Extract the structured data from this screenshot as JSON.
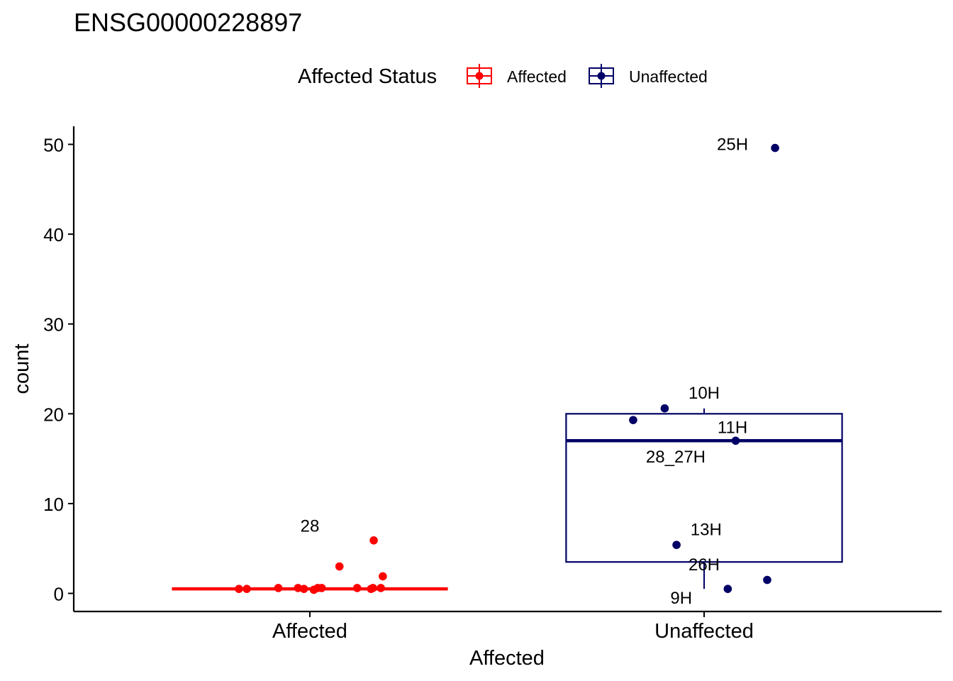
{
  "chart_data": {
    "type": "box",
    "title": "ENSG00000228897",
    "xlabel": "Affected",
    "ylabel": "count",
    "categories": [
      "Affected",
      "Unaffected"
    ],
    "ylim": [
      -2,
      52
    ],
    "yticks": [
      0,
      10,
      20,
      30,
      40,
      50
    ],
    "grid": false,
    "legend": {
      "title": "Affected Status",
      "position": "top",
      "entries": [
        {
          "label": "Affected",
          "color": "#FF0000"
        },
        {
          "label": "Unaffected",
          "color": "#000066"
        }
      ]
    },
    "series": [
      {
        "name": "Affected",
        "color": "#FF0000",
        "box": {
          "q1": 0.5,
          "median": 0.5,
          "q3": 0.5,
          "whisker_low": 0.5,
          "whisker_high": 0.5
        },
        "points": [
          {
            "dx": -0.18,
            "y": 0.5
          },
          {
            "dx": -0.16,
            "y": 0.5
          },
          {
            "dx": -0.08,
            "y": 0.6
          },
          {
            "dx": -0.03,
            "y": 0.6
          },
          {
            "dx": -0.015,
            "y": 0.5
          },
          {
            "dx": 0.01,
            "y": 0.4
          },
          {
            "dx": 0.02,
            "y": 0.6
          },
          {
            "dx": 0.03,
            "y": 0.6
          },
          {
            "dx": 0.12,
            "y": 0.6
          },
          {
            "dx": 0.155,
            "y": 0.5
          },
          {
            "dx": 0.16,
            "y": 0.6
          },
          {
            "dx": 0.18,
            "y": 0.6
          },
          {
            "dx": 0.075,
            "y": 3.0
          },
          {
            "dx": 0.185,
            "y": 1.9
          },
          {
            "dx": 0.162,
            "y": 5.9
          }
        ],
        "labels": [
          {
            "text": "28",
            "dx": 0.0,
            "y": 7.5
          }
        ]
      },
      {
        "name": "Unaffected",
        "color": "#000066",
        "box": {
          "q1": 3.5,
          "median": 17.0,
          "q3": 20.0,
          "whisker_low": 0.5,
          "whisker_high": 20.6
        },
        "points": [
          {
            "dx": 0.18,
            "y": 49.6
          },
          {
            "dx": -0.1,
            "y": 20.6
          },
          {
            "dx": -0.18,
            "y": 19.3
          },
          {
            "dx": 0.08,
            "y": 17.0
          },
          {
            "dx": -0.07,
            "y": 5.4
          },
          {
            "dx": 0.16,
            "y": 1.5
          },
          {
            "dx": 0.06,
            "y": 0.5
          }
        ],
        "labels": [
          {
            "text": "25H",
            "dx": 0.072,
            "y": 50.0
          },
          {
            "text": "10H",
            "dx": 0.0,
            "y": 22.3
          },
          {
            "text": "11H",
            "dx": 0.072,
            "y": 18.5
          },
          {
            "text": "28_27H",
            "dx": -0.072,
            "y": 15.2
          },
          {
            "text": "13H",
            "dx": 0.005,
            "y": 7.1
          },
          {
            "text": "26H",
            "dx": 0.0,
            "y": 3.2
          },
          {
            "text": "9H",
            "dx": -0.058,
            "y": -0.5
          }
        ]
      }
    ]
  }
}
